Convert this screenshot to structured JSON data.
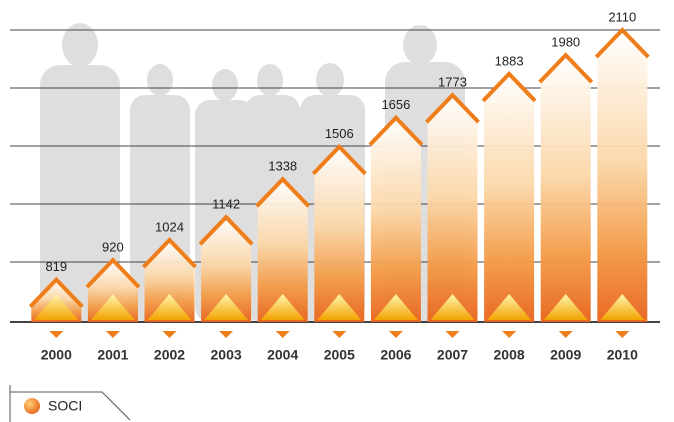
{
  "chart_data": {
    "type": "bar",
    "categories": [
      "2000",
      "2001",
      "2002",
      "2003",
      "2004",
      "2005",
      "2006",
      "2007",
      "2008",
      "2009",
      "2010"
    ],
    "series": [
      {
        "name": "SOCI",
        "color": "#ef7d1a",
        "values": [
          819,
          920,
          1024,
          1142,
          1338,
          1506,
          1656,
          1773,
          1883,
          1980,
          2110
        ]
      }
    ],
    "ylim": [
      600,
      2110
    ]
  }
}
